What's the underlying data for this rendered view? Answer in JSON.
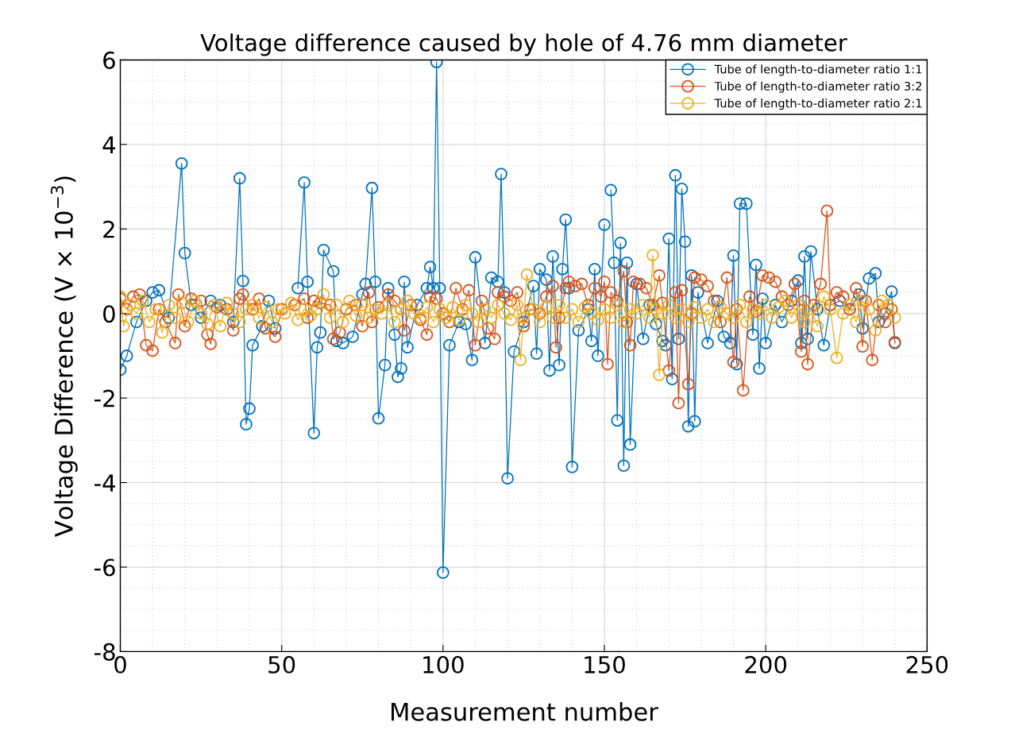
{
  "chart_data": {
    "type": "line",
    "title": "Voltage difference caused by hole of 4.76 mm diameter",
    "xlabel": "Measurement number",
    "ylabel": "Voltage Difference (V × 10$^{−3}$)",
    "xlim": [
      0,
      250
    ],
    "xticks": [
      0,
      50,
      100,
      150,
      200,
      250
    ],
    "ylim": [
      -8,
      6
    ],
    "yticks": [
      -8,
      -6,
      -4,
      -2,
      0,
      2,
      4,
      6
    ],
    "grid": true,
    "legend": "top right",
    "marker": "circle",
    "line_style": "solid",
    "series": [
      {
        "name": "Tube of length-to-diameter ratio 1:1",
        "color": "#0072bd",
        "x": [
          0,
          2,
          5,
          8,
          10,
          12,
          15,
          19,
          20,
          22,
          25,
          28,
          31,
          35,
          37,
          38,
          39,
          40,
          41,
          44,
          46,
          48,
          52,
          55,
          57,
          58,
          60,
          61,
          62,
          63,
          66,
          67,
          69,
          72,
          75,
          76,
          78,
          79,
          80,
          82,
          83,
          85,
          86,
          87,
          88,
          89,
          92,
          95,
          96,
          97,
          98,
          99,
          100,
          102,
          105,
          107,
          109,
          110,
          113,
          115,
          117,
          118,
          119,
          120,
          122,
          125,
          128,
          129,
          130,
          132,
          133,
          134,
          136,
          137,
          138,
          139,
          140,
          142,
          145,
          146,
          147,
          148,
          150,
          151,
          152,
          153,
          154,
          155,
          156,
          157,
          158,
          160,
          162,
          164,
          166,
          168,
          169,
          170,
          171,
          172,
          173,
          174,
          175,
          176,
          177,
          178,
          179,
          182,
          185,
          187,
          189,
          190,
          191,
          192,
          194,
          196,
          197,
          198,
          199,
          200,
          203,
          205,
          208,
          210,
          211,
          212,
          213,
          214,
          216,
          218,
          220,
          223,
          226,
          229,
          230,
          232,
          234,
          235,
          237,
          239,
          240
        ],
        "values": [
          -1.33,
          -1.0,
          -0.2,
          0.3,
          0.5,
          0.55,
          -0.1,
          3.55,
          1.43,
          0.2,
          -0.1,
          0.3,
          0.2,
          -0.2,
          3.2,
          0.77,
          -2.62,
          -2.25,
          -0.75,
          -0.3,
          0.3,
          -0.35,
          null,
          0.6,
          3.1,
          0.75,
          -2.83,
          -0.8,
          -0.45,
          1.5,
          1.0,
          -0.65,
          -0.7,
          -0.55,
          0.45,
          0.7,
          2.97,
          0.75,
          -2.48,
          -1.22,
          0.6,
          -0.5,
          -1.5,
          -1.3,
          0.75,
          -0.8,
          0.2,
          0.6,
          1.1,
          0.6,
          5.95,
          0.6,
          -6.13,
          -0.75,
          -0.2,
          -0.25,
          -1.1,
          1.33,
          -0.7,
          0.85,
          0.75,
          3.3,
          0.5,
          -3.9,
          -0.9,
          -0.2,
          0.65,
          -0.95,
          1.05,
          0.8,
          -1.35,
          1.35,
          -1.22,
          1.05,
          2.22,
          0.6,
          -3.63,
          -0.4,
          0.1,
          -0.65,
          1.05,
          -1.0,
          2.1,
          null,
          2.92,
          1.2,
          -2.53,
          1.67,
          -3.6,
          1.2,
          -3.1,
          0.7,
          -0.6,
          0.2,
          -0.25,
          -0.65,
          -0.75,
          1.77,
          -1.55,
          3.27,
          -0.6,
          2.95,
          1.7,
          -2.67,
          0.9,
          -2.55,
          0.5,
          -0.7,
          0.3,
          -0.55,
          -0.7,
          1.37,
          -1.2,
          2.6,
          2.6,
          -0.5,
          1.15,
          -1.3,
          0.35,
          -0.7,
          0.2,
          -0.2,
          0.3,
          0.78,
          -0.7,
          1.35,
          -0.6,
          1.47,
          0.1,
          -0.75,
          0.2,
          0.3,
          0.1,
          0.45,
          -0.35,
          0.83,
          0.95,
          -0.2,
          0.0,
          0.52,
          -0.7
        ]
      },
      {
        "name": "Tube of length-to-diameter ratio 3:2",
        "color": "#d95319",
        "x": [
          0,
          2,
          4,
          6,
          8,
          10,
          12,
          14,
          17,
          18,
          20,
          22,
          25,
          27,
          28,
          30,
          33,
          35,
          37,
          38,
          41,
          43,
          45,
          48,
          50,
          54,
          57,
          58,
          60,
          62,
          65,
          66,
          68,
          70,
          73,
          75,
          77,
          78,
          80,
          83,
          85,
          87,
          88,
          90,
          93,
          95,
          96,
          98,
          100,
          102,
          104,
          106,
          108,
          110,
          112,
          114,
          116,
          117,
          119,
          121,
          123,
          125,
          127,
          130,
          132,
          134,
          135,
          136,
          138,
          139,
          141,
          143,
          145,
          147,
          149,
          150,
          151,
          152,
          154,
          156,
          157,
          158,
          159,
          161,
          163,
          165,
          167,
          168,
          170,
          172,
          173,
          174,
          176,
          177,
          178,
          180,
          182,
          184,
          186,
          188,
          190,
          191,
          193,
          195,
          197,
          199,
          201,
          203,
          205,
          207,
          209,
          211,
          212,
          213,
          215,
          217,
          219,
          220,
          222,
          224,
          226,
          228,
          230,
          231,
          233,
          235,
          237,
          239,
          240
        ],
        "values": [
          0.35,
          0.1,
          0.4,
          0.45,
          -0.75,
          -0.88,
          0.1,
          -0.2,
          -0.7,
          0.45,
          -0.3,
          0.35,
          0.3,
          -0.5,
          -0.72,
          0.15,
          0.1,
          -0.4,
          0.35,
          0.45,
          0.1,
          0.35,
          -0.35,
          -0.55,
          0.1,
          0.2,
          0.35,
          -0.1,
          0.3,
          0.25,
          0.2,
          -0.6,
          -0.45,
          0.1,
          0.2,
          -0.3,
          0.5,
          -0.2,
          0.15,
          0.45,
          0.3,
          0.1,
          -0.4,
          0.2,
          -0.15,
          -0.5,
          0.4,
          0.35,
          0.0,
          -0.2,
          0.6,
          0.1,
          0.55,
          -0.75,
          0.3,
          -0.35,
          -0.6,
          0.5,
          0.4,
          0.3,
          0.5,
          -0.3,
          0.1,
          0.0,
          0.4,
          0.65,
          -0.8,
          -0.1,
          0.6,
          0.75,
          0.65,
          0.7,
          0.2,
          0.6,
          0.4,
          0.75,
          -1.2,
          0.5,
          0.3,
          1.0,
          -0.2,
          -0.75,
          0.75,
          0.7,
          0.6,
          0.2,
          0.9,
          0.25,
          -1.35,
          0.5,
          -2.12,
          0.55,
          -1.67,
          0.0,
          0.85,
          0.8,
          0.65,
          0.3,
          -0.2,
          0.85,
          -1.15,
          0.1,
          -1.82,
          0.4,
          0.05,
          0.9,
          0.85,
          0.75,
          0.4,
          0.2,
          0.7,
          -0.9,
          0.3,
          -1.2,
          0.2,
          0.7,
          2.43,
          0.2,
          0.5,
          0.4,
          0.1,
          0.6,
          -0.78,
          0.3,
          -1.1,
          0.2,
          -0.2,
          0.1,
          -0.68
        ]
      },
      {
        "name": "Tube of length-to-diameter ratio 2:1",
        "color": "#edb120",
        "x": [
          0,
          1,
          3,
          5,
          7,
          9,
          11,
          13,
          15,
          17,
          19,
          21,
          23,
          25,
          27,
          29,
          31,
          33,
          35,
          37,
          39,
          41,
          43,
          45,
          47,
          49,
          51,
          53,
          55,
          57,
          59,
          61,
          63,
          65,
          67,
          69,
          71,
          73,
          75,
          77,
          79,
          81,
          83,
          85,
          87,
          89,
          91,
          93,
          95,
          97,
          99,
          101,
          103,
          105,
          107,
          109,
          111,
          113,
          115,
          117,
          119,
          121,
          123,
          124,
          125,
          126,
          128,
          130,
          132,
          134,
          136,
          138,
          140,
          142,
          144,
          146,
          148,
          150,
          152,
          154,
          156,
          158,
          160,
          162,
          164,
          165,
          166,
          167,
          168,
          170,
          172,
          174,
          176,
          178,
          180,
          182,
          184,
          186,
          188,
          190,
          192,
          194,
          196,
          198,
          200,
          202,
          204,
          206,
          208,
          210,
          212,
          214,
          216,
          218,
          220,
          222,
          224,
          226,
          228,
          230,
          232,
          234,
          236,
          238,
          240
        ],
        "values": [
          0.4,
          -0.3,
          0.2,
          0.0,
          0.3,
          -0.2,
          0.1,
          -0.45,
          0.2,
          -0.1,
          0.25,
          -0.2,
          0.3,
          0.0,
          -0.25,
          0.2,
          -0.3,
          0.25,
          0.0,
          -0.2,
          0.1,
          0.2,
          -0.1,
          0.15,
          -0.2,
          0.1,
          0.0,
          0.25,
          -0.15,
          0.1,
          -0.05,
          0.1,
          0.45,
          -0.1,
          0.2,
          -0.2,
          0.3,
          -0.05,
          0.2,
          -0.1,
          0.1,
          0.0,
          0.2,
          -0.2,
          0.1,
          0.3,
          0.0,
          -0.1,
          0.15,
          -0.2,
          0.1,
          -0.1,
          0.15,
          -0.15,
          0.2,
          0.0,
          -0.2,
          0.1,
          -0.1,
          0.2,
          0.0,
          -0.15,
          0.2,
          -1.1,
          -0.1,
          0.92,
          0.1,
          -0.2,
          0.15,
          -0.1,
          0.2,
          -0.1,
          0.1,
          -0.2,
          0.15,
          0.0,
          -0.15,
          0.1,
          -0.1,
          0.2,
          -0.2,
          0.1,
          0.0,
          0.2,
          -0.1,
          1.38,
          0.1,
          -1.45,
          0.0,
          0.2,
          -0.1,
          0.1,
          -0.2,
          0.15,
          -0.1,
          0.1,
          -0.2,
          0.15,
          0.0,
          -0.1,
          0.2,
          -0.2,
          0.1,
          0.0,
          0.2,
          -0.1,
          0.15,
          0.3,
          -0.1,
          0.2,
          -0.2,
          0.1,
          -0.3,
          0.4,
          0.1,
          -1.05,
          0.0,
          0.2,
          -0.2,
          0.3,
          0.1,
          -0.4,
          0.3,
          0.2,
          -0.1
        ]
      }
    ]
  }
}
